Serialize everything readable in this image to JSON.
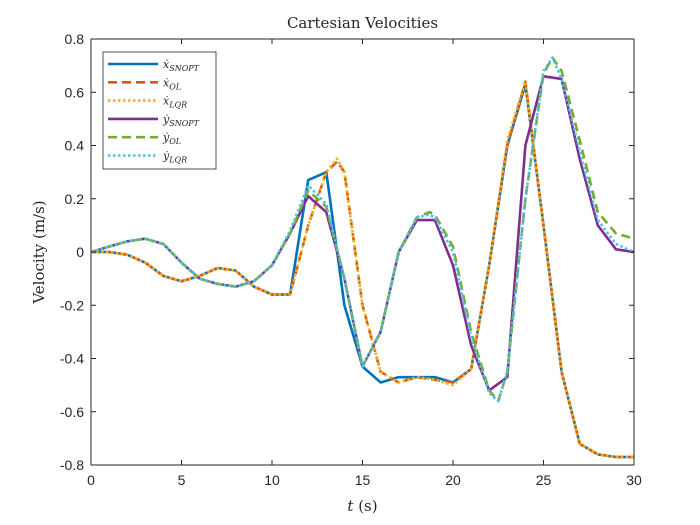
{
  "chart_data": {
    "type": "line",
    "title": "Cartesian Velocities",
    "xlabel_var": "t",
    "xlabel_unit": "(s)",
    "ylabel": "Velocity (m/s)",
    "xlim": [
      0,
      30
    ],
    "ylim": [
      -0.8,
      0.8
    ],
    "xticks": [
      0,
      5,
      10,
      15,
      20,
      25,
      30
    ],
    "yticks": [
      -0.8,
      -0.6,
      -0.4,
      -0.2,
      0,
      0.2,
      0.4,
      0.6,
      0.8
    ],
    "grid": false,
    "legend_position": "top-left",
    "series": [
      {
        "name": "ẋ",
        "sub": "SNOPT",
        "color": "#0072bd",
        "dash": "solid",
        "x": [
          0,
          1,
          2,
          3,
          4,
          5,
          6,
          7,
          8,
          9,
          10,
          11,
          12,
          13,
          14,
          15,
          16,
          17,
          18,
          19,
          20,
          21,
          22,
          23,
          24,
          25,
          26,
          27,
          28,
          29,
          30
        ],
        "y": [
          0,
          0,
          -0.01,
          -0.04,
          -0.09,
          -0.11,
          -0.09,
          -0.06,
          -0.07,
          -0.13,
          -0.16,
          -0.16,
          0.27,
          0.3,
          -0.2,
          -0.43,
          -0.49,
          -0.47,
          -0.47,
          -0.47,
          -0.49,
          -0.44,
          -0.05,
          0.4,
          0.63,
          0.1,
          -0.45,
          -0.72,
          -0.76,
          -0.77,
          -0.77
        ]
      },
      {
        "name": "ẋ",
        "sub": "OL",
        "color": "#d95319",
        "dash": "dashed",
        "x": [
          0,
          1,
          2,
          3,
          4,
          5,
          6,
          7,
          8,
          9,
          10,
          11,
          12,
          13,
          13.6,
          14,
          15,
          16,
          17,
          18,
          19,
          20,
          21,
          22,
          23,
          24,
          25,
          26,
          27,
          28,
          29,
          30
        ],
        "y": [
          0,
          0,
          -0.01,
          -0.04,
          -0.09,
          -0.11,
          -0.09,
          -0.06,
          -0.07,
          -0.13,
          -0.16,
          -0.16,
          0.1,
          0.3,
          0.34,
          0.3,
          -0.2,
          -0.45,
          -0.49,
          -0.47,
          -0.48,
          -0.49,
          -0.44,
          -0.05,
          0.4,
          0.64,
          0.1,
          -0.45,
          -0.72,
          -0.76,
          -0.77,
          -0.77
        ]
      },
      {
        "name": "ẋ",
        "sub": "LQR",
        "color": "#edb120",
        "dash": "dotted",
        "x": [
          0,
          1,
          2,
          3,
          4,
          5,
          6,
          7,
          8,
          9,
          10,
          11,
          12,
          13,
          13.6,
          14,
          15,
          16,
          17,
          18,
          19,
          20,
          21,
          22,
          23,
          24,
          25,
          26,
          27,
          28,
          29,
          30
        ],
        "y": [
          0,
          0,
          -0.01,
          -0.04,
          -0.09,
          -0.11,
          -0.09,
          -0.06,
          -0.07,
          -0.13,
          -0.16,
          -0.16,
          0.1,
          0.3,
          0.35,
          0.3,
          -0.2,
          -0.45,
          -0.49,
          -0.47,
          -0.48,
          -0.5,
          -0.44,
          -0.05,
          0.42,
          0.64,
          0.1,
          -0.45,
          -0.72,
          -0.76,
          -0.77,
          -0.77
        ]
      },
      {
        "name": "ẏ",
        "sub": "SNOPT",
        "color": "#7e2f8e",
        "dash": "solid",
        "x": [
          0,
          1,
          2,
          3,
          4,
          5,
          6,
          7,
          8,
          9,
          10,
          11,
          12,
          13,
          14,
          15,
          16,
          17,
          18,
          19,
          20,
          21,
          22,
          23,
          24,
          25,
          26,
          27,
          28,
          29,
          30
        ],
        "y": [
          0,
          0.02,
          0.04,
          0.05,
          0.03,
          -0.04,
          -0.1,
          -0.12,
          -0.13,
          -0.11,
          -0.05,
          0.07,
          0.21,
          0.15,
          -0.1,
          -0.43,
          -0.3,
          0.0,
          0.12,
          0.12,
          -0.05,
          -0.35,
          -0.52,
          -0.47,
          0.4,
          0.66,
          0.65,
          0.35,
          0.1,
          0.01,
          0.0
        ]
      },
      {
        "name": "ẏ",
        "sub": "OL",
        "color": "#77ac30",
        "dash": "dashed",
        "x": [
          0,
          1,
          2,
          3,
          4,
          5,
          6,
          7,
          8,
          9,
          10,
          11,
          12,
          13,
          14,
          15,
          16,
          17,
          18,
          18.7,
          19,
          20,
          21,
          22,
          22.5,
          23,
          24,
          25,
          25.5,
          26,
          27,
          28,
          29,
          30
        ],
        "y": [
          0,
          0.02,
          0.04,
          0.05,
          0.03,
          -0.04,
          -0.1,
          -0.12,
          -0.13,
          -0.11,
          -0.05,
          0.07,
          0.23,
          0.17,
          -0.1,
          -0.43,
          -0.3,
          0.0,
          0.13,
          0.15,
          0.14,
          0.02,
          -0.3,
          -0.52,
          -0.56,
          -0.45,
          0.2,
          0.67,
          0.73,
          0.68,
          0.42,
          0.15,
          0.07,
          0.05
        ]
      },
      {
        "name": "ẏ",
        "sub": "LQR",
        "color": "#4dbeee",
        "dash": "dotted",
        "x": [
          0,
          1,
          2,
          3,
          4,
          5,
          6,
          7,
          8,
          9,
          10,
          11,
          12,
          13,
          14,
          15,
          16,
          17,
          18,
          18.7,
          19,
          20,
          21,
          22,
          22.5,
          23,
          24,
          25,
          25.5,
          26,
          27,
          28,
          29,
          30
        ],
        "y": [
          0,
          0.02,
          0.04,
          0.05,
          0.03,
          -0.04,
          -0.1,
          -0.12,
          -0.13,
          -0.11,
          -0.05,
          0.08,
          0.25,
          0.18,
          -0.1,
          -0.43,
          -0.3,
          0.0,
          0.13,
          0.14,
          0.13,
          0.0,
          -0.32,
          -0.53,
          -0.56,
          -0.45,
          0.2,
          0.68,
          0.73,
          0.65,
          0.38,
          0.12,
          0.03,
          0.0
        ]
      }
    ]
  }
}
